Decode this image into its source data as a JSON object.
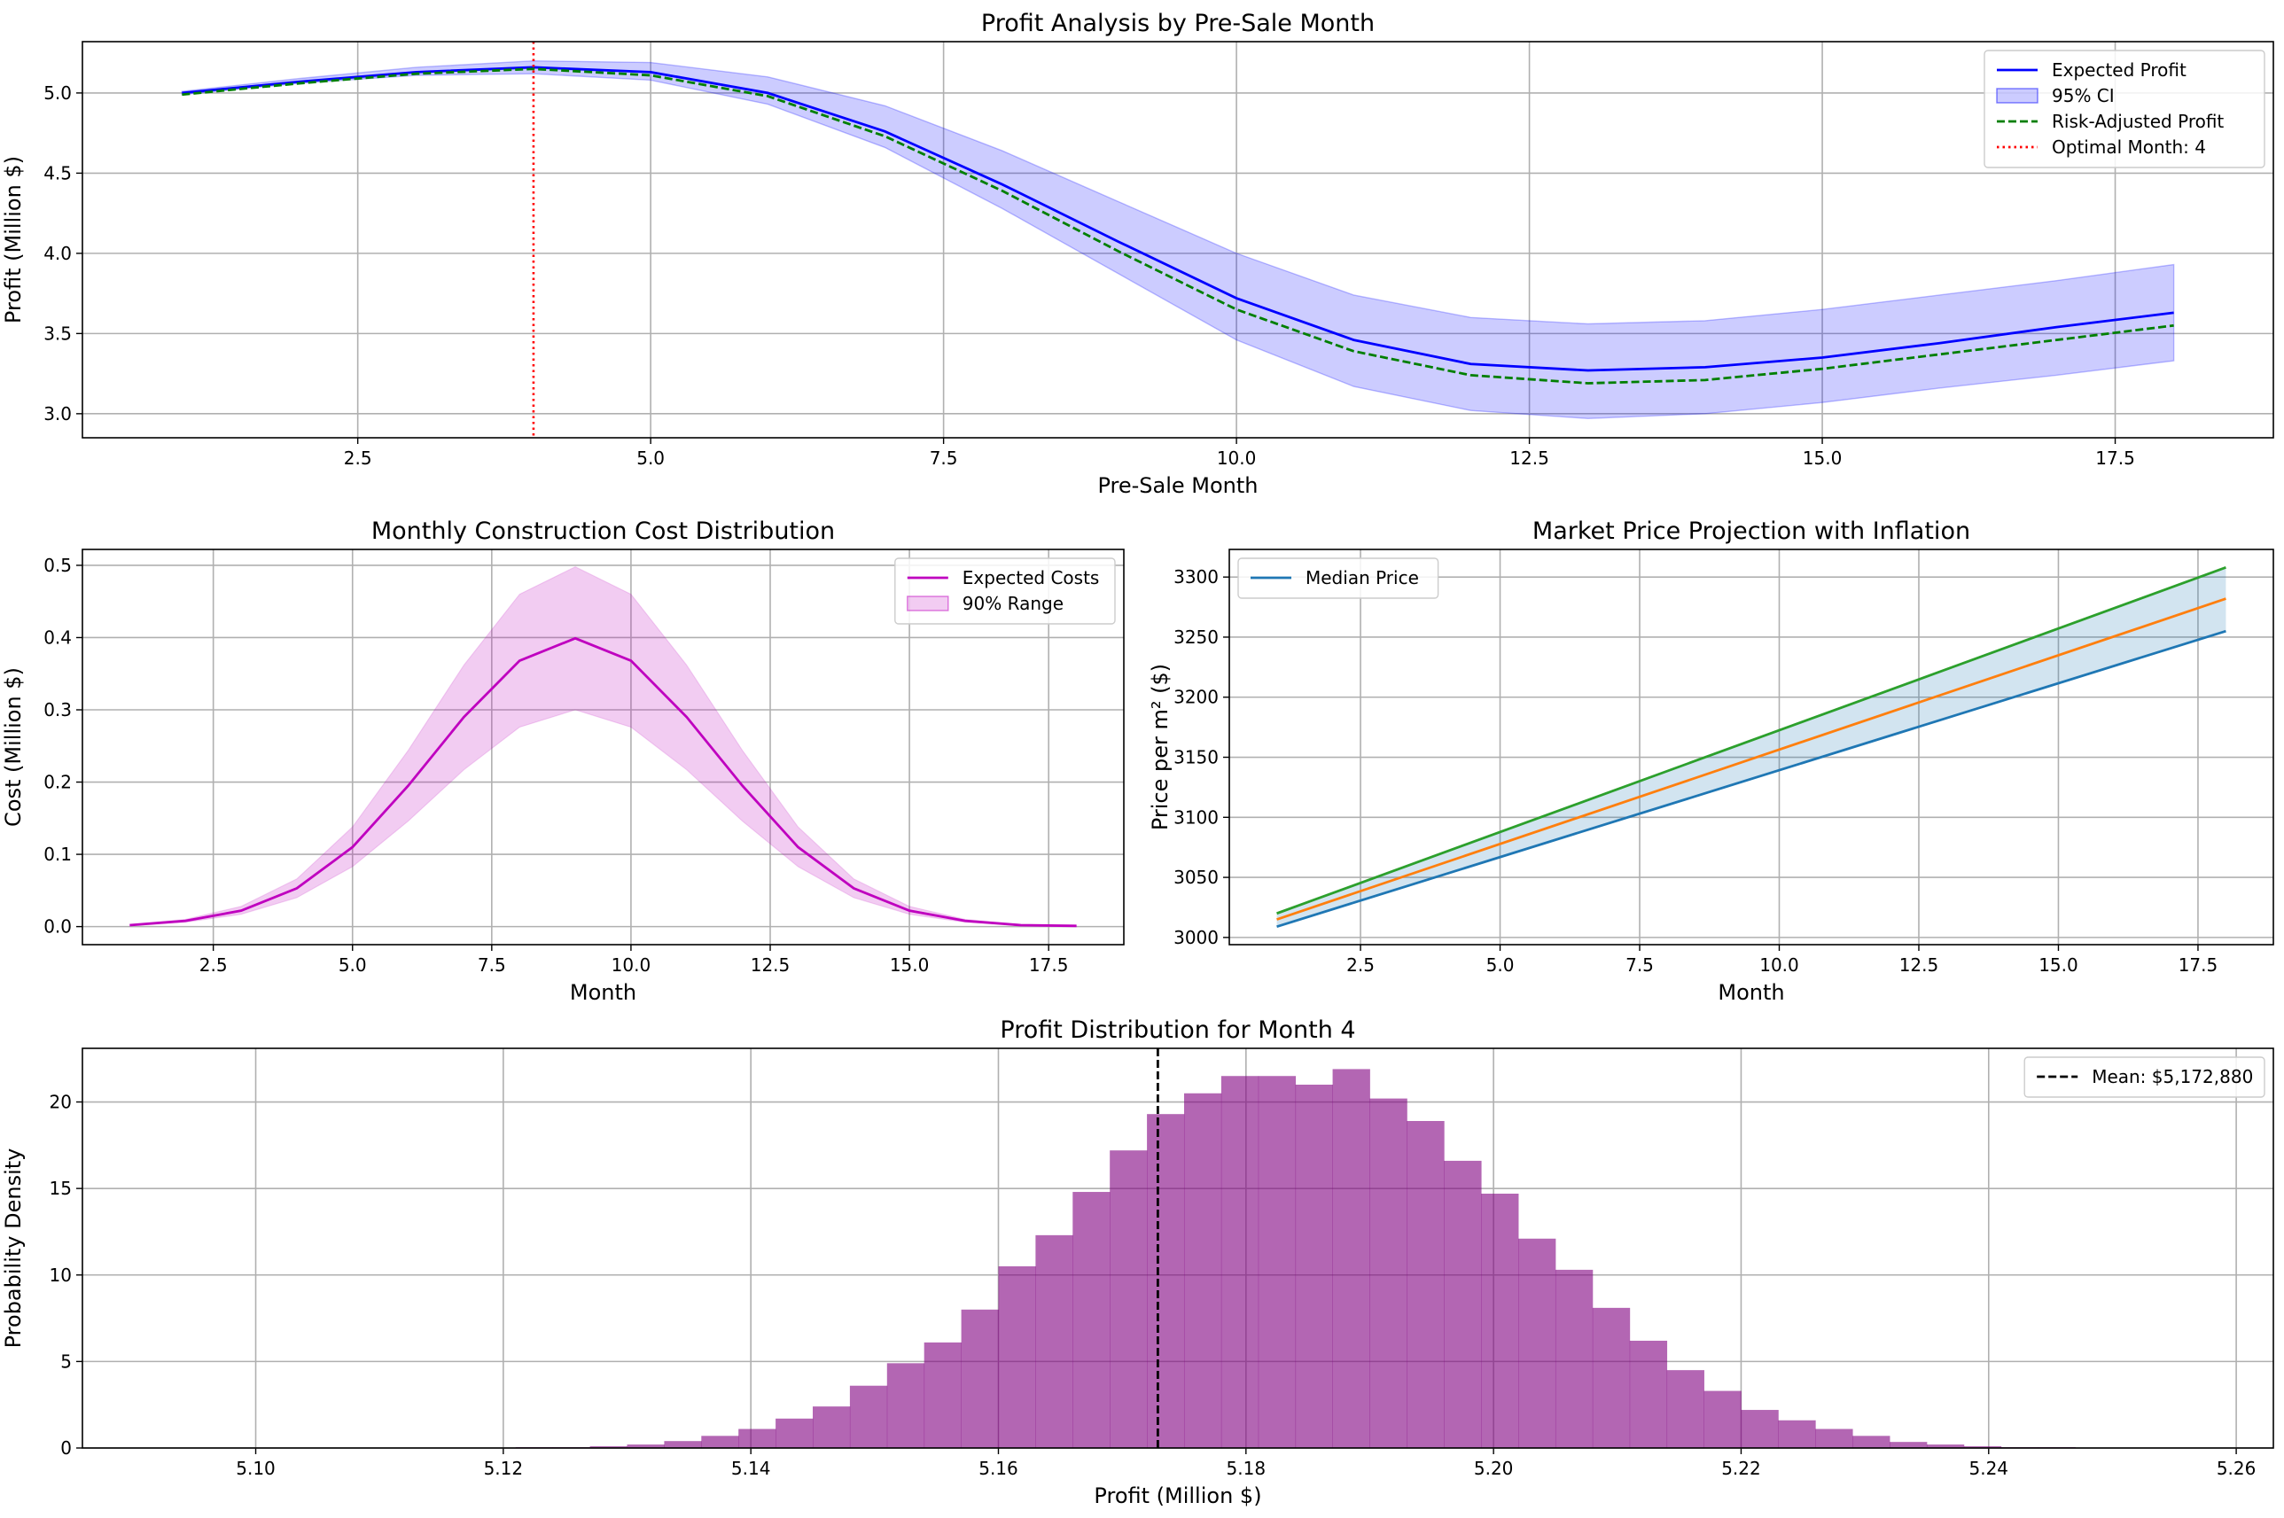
{
  "chart_data": [
    {
      "type": "line",
      "title": "Profit Analysis by Pre-Sale Month",
      "xlabel": "Pre-Sale Month",
      "ylabel": "Profit (Million $)",
      "xlim": [
        0.15,
        18.85
      ],
      "ylim": [
        2.85,
        5.32
      ],
      "xticks": [
        2.5,
        5.0,
        7.5,
        10.0,
        12.5,
        15.0,
        17.5
      ],
      "xtick_labels": [
        "2.5",
        "5.0",
        "7.5",
        "10.0",
        "12.5",
        "15.0",
        "17.5"
      ],
      "yticks": [
        3.0,
        3.5,
        4.0,
        4.5,
        5.0
      ],
      "ytick_labels": [
        "3.0",
        "3.5",
        "4.0",
        "4.5",
        "5.0"
      ],
      "grid": true,
      "legend_position": "upper right",
      "x": [
        1,
        2,
        3,
        4,
        5,
        6,
        7,
        8,
        9,
        10,
        11,
        12,
        13,
        14,
        15,
        16,
        17,
        18
      ],
      "series": [
        {
          "name": "Expected Profit",
          "style": "solid",
          "color": "#0000ff",
          "values": [
            5.0,
            5.07,
            5.13,
            5.16,
            5.13,
            5.0,
            4.76,
            4.43,
            4.07,
            3.72,
            3.46,
            3.31,
            3.27,
            3.29,
            3.35,
            3.44,
            3.54,
            3.63
          ]
        },
        {
          "name": "Risk-Adjusted Profit",
          "style": "dashed",
          "color": "#007f00",
          "values": [
            4.99,
            5.06,
            5.12,
            5.15,
            5.11,
            4.98,
            4.73,
            4.39,
            4.01,
            3.65,
            3.39,
            3.24,
            3.19,
            3.21,
            3.28,
            3.37,
            3.46,
            3.55
          ]
        }
      ],
      "band": {
        "name": "95% CI",
        "color": "#0000ff",
        "lower": [
          4.99,
          5.06,
          5.11,
          5.12,
          5.08,
          4.93,
          4.66,
          4.28,
          3.87,
          3.46,
          3.17,
          3.02,
          2.97,
          3.0,
          3.07,
          3.16,
          3.24,
          3.33
        ],
        "upper": [
          5.01,
          5.09,
          5.16,
          5.2,
          5.19,
          5.1,
          4.92,
          4.64,
          4.32,
          4.0,
          3.74,
          3.6,
          3.56,
          3.58,
          3.65,
          3.74,
          3.83,
          3.93
        ]
      },
      "vline": {
        "name": "Optimal Month: 4",
        "x": 4,
        "color": "#ff0000",
        "style": "dotted"
      }
    },
    {
      "type": "line",
      "title": "Monthly Construction Cost Distribution",
      "xlabel": "Month",
      "ylabel": "Cost (Million $)",
      "xlim": [
        0.15,
        18.85
      ],
      "ylim": [
        -0.025,
        0.522
      ],
      "xticks": [
        2.5,
        5.0,
        7.5,
        10.0,
        12.5,
        15.0,
        17.5
      ],
      "xtick_labels": [
        "2.5",
        "5.0",
        "7.5",
        "10.0",
        "12.5",
        "15.0",
        "17.5"
      ],
      "yticks": [
        0.0,
        0.1,
        0.2,
        0.3,
        0.4,
        0.5
      ],
      "ytick_labels": [
        "0.0",
        "0.1",
        "0.2",
        "0.3",
        "0.4",
        "0.5"
      ],
      "grid": true,
      "legend_position": "upper right",
      "x": [
        1,
        2,
        3,
        4,
        5,
        6,
        7,
        8,
        9,
        10,
        11,
        12,
        13,
        14,
        15,
        16,
        17,
        18
      ],
      "series": [
        {
          "name": "Expected Costs",
          "style": "solid",
          "color": "#bf00bf",
          "values": [
            0.002,
            0.008,
            0.022,
            0.053,
            0.11,
            0.195,
            0.29,
            0.368,
            0.399,
            0.368,
            0.29,
            0.195,
            0.11,
            0.053,
            0.022,
            0.008,
            0.002,
            0.001
          ]
        }
      ],
      "band": {
        "name": "90% Range",
        "color": "#bf00bf",
        "lower": [
          0.001,
          0.006,
          0.017,
          0.04,
          0.083,
          0.146,
          0.217,
          0.276,
          0.3,
          0.276,
          0.217,
          0.146,
          0.083,
          0.04,
          0.017,
          0.006,
          0.001,
          0.0
        ],
        "upper": [
          0.003,
          0.01,
          0.028,
          0.066,
          0.138,
          0.244,
          0.362,
          0.46,
          0.498,
          0.46,
          0.362,
          0.244,
          0.138,
          0.066,
          0.028,
          0.01,
          0.003,
          0.001
        ]
      }
    },
    {
      "type": "line",
      "title": "Market Price Projection with Inflation",
      "xlabel": "Month",
      "ylabel": "Price per m² ($)",
      "xlim": [
        0.15,
        18.85
      ],
      "ylim": [
        2994,
        3323
      ],
      "xticks": [
        2.5,
        5.0,
        7.5,
        10.0,
        12.5,
        15.0,
        17.5
      ],
      "xtick_labels": [
        "2.5",
        "5.0",
        "7.5",
        "10.0",
        "12.5",
        "15.0",
        "17.5"
      ],
      "yticks": [
        3000,
        3050,
        3100,
        3150,
        3200,
        3250,
        3300
      ],
      "ytick_labels": [
        "3000",
        "3050",
        "3100",
        "3150",
        "3200",
        "3250",
        "3300"
      ],
      "grid": true,
      "legend_position": "upper left",
      "x": [
        1,
        18
      ],
      "series": [
        {
          "name": "Median Price",
          "style": "solid",
          "color": "#1f77b4",
          "values": [
            3009,
            3255
          ]
        },
        {
          "name": "",
          "style": "solid",
          "color": "#ff7f0e",
          "values": [
            3015,
            3282
          ]
        },
        {
          "name": "",
          "style": "solid",
          "color": "#2ca02c",
          "values": [
            3020,
            3308
          ]
        }
      ],
      "band": {
        "name": "",
        "color": "#1f77b4",
        "lower": [
          3009,
          3255
        ],
        "upper": [
          3020,
          3308
        ]
      }
    },
    {
      "type": "histogram",
      "title": "Profit Distribution for Month 4",
      "xlabel": "Profit (Million $)",
      "ylabel": "Probability Density",
      "xlim": [
        5.086,
        5.263
      ],
      "ylim": [
        0,
        23.1
      ],
      "xticks": [
        5.1,
        5.12,
        5.14,
        5.16,
        5.18,
        5.2,
        5.22,
        5.24,
        5.26
      ],
      "xtick_labels": [
        "5.10",
        "5.12",
        "5.14",
        "5.16",
        "5.18",
        "5.20",
        "5.22",
        "5.24",
        "5.26"
      ],
      "yticks": [
        0,
        5,
        10,
        15,
        20
      ],
      "ytick_labels": [
        "0",
        "5",
        "10",
        "15",
        "20"
      ],
      "grid": true,
      "legend_position": "upper right",
      "color": "#800080",
      "bin_start": 5.094,
      "bin_width": 0.003,
      "densities": [
        0.01,
        0.01,
        0.01,
        0.01,
        0.01,
        0.01,
        0.01,
        0.01,
        0.01,
        0.05,
        0.05,
        0.1,
        0.2,
        0.4,
        0.7,
        1.1,
        1.7,
        2.4,
        3.6,
        4.9,
        6.1,
        8.0,
        10.5,
        12.3,
        14.8,
        17.2,
        19.3,
        20.5,
        21.5,
        21.5,
        21.0,
        21.9,
        20.2,
        18.9,
        16.6,
        14.7,
        12.1,
        10.3,
        8.1,
        6.2,
        4.5,
        3.3,
        2.2,
        1.6,
        1.1,
        0.7,
        0.35,
        0.2,
        0.1,
        0.05,
        0.05,
        0.02,
        0.01,
        0.01,
        0.01,
        0.01
      ],
      "mean_line": {
        "name": "Mean: $5,172,880",
        "x": 5.17288,
        "color": "#000000",
        "style": "dashed"
      }
    }
  ]
}
